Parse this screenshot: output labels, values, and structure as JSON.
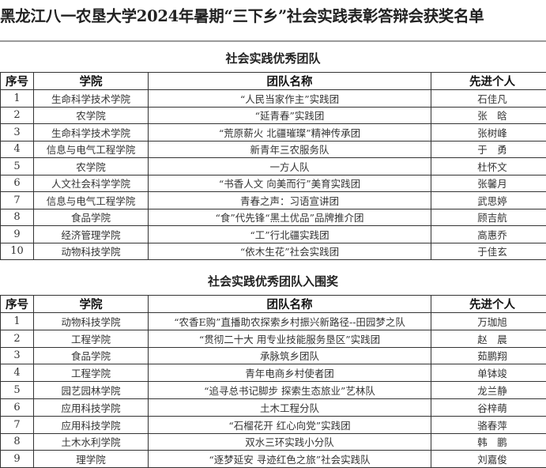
{
  "document_title": "黑龙江八一农垦大学2024年暑期“三下乡”社会实践表彰答辩会获奖名单",
  "headers": [
    "序号",
    "学院",
    "团队名称",
    "先进个人"
  ],
  "sections": [
    {
      "title": "社会实践优秀团队",
      "rows": [
        [
          "1",
          "生命科学技术学院",
          "“人民当家作主”实践团",
          "石佳凡"
        ],
        [
          "2",
          "农学院",
          "“延青春”实践团",
          "张　晗"
        ],
        [
          "3",
          "生命科学技术学院",
          "“荒原薪火 北疆璀璨”精神传承团",
          "张树峰"
        ],
        [
          "4",
          "信息与电气工程学院",
          "新青年三农服务队",
          "于　勇"
        ],
        [
          "5",
          "农学院",
          "一方人队",
          "杜怀文"
        ],
        [
          "6",
          "人文社会科学学院",
          "“书香人文 向美而行”美育实践团",
          "张馨月"
        ],
        [
          "7",
          "信息与电气工程学院",
          "青春之声：习语宣讲团",
          "武思婷"
        ],
        [
          "8",
          "食品学院",
          "“食”代先锋“黑土优品”品牌推介团",
          "顾吉航"
        ],
        [
          "9",
          "经济管理学院",
          "“工”行北疆实践团",
          "高惠乔"
        ],
        [
          "10",
          "动物科技学院",
          "“依木生花”社会实践团",
          "于佳玄"
        ]
      ]
    },
    {
      "title": "社会实践优秀团队入围奖",
      "rows": [
        [
          "1",
          "动物科技学院",
          "“农香E购”直播助农探索乡村振兴新路径--田园梦之队",
          "万珈旭"
        ],
        [
          "2",
          "工程学院",
          "“贯彻二十大 用专业技能服务垦区”实践团",
          "赵　晨"
        ],
        [
          "3",
          "食品学院",
          "承脉筑乡团队",
          "茹鹏翔"
        ],
        [
          "4",
          "工程学院",
          "青年电商乡村使者团",
          "单钵竣"
        ],
        [
          "5",
          "园艺园林学院",
          "“追寻总书记脚步 探索生态旅业”艺林队",
          "龙兰静"
        ],
        [
          "6",
          "应用科技学院",
          "土木工程分队",
          "谷梓萌"
        ],
        [
          "7",
          "应用科技学院",
          "“石榴花开 红心向党”实践团",
          "骆春萍"
        ],
        [
          "8",
          "土木水利学院",
          "双水三环实践小分队",
          "韩　鹏"
        ],
        [
          "9",
          "理学院",
          "“逐梦延安 寻迹红色之旅”社会实践队",
          "刘嘉俊"
        ]
      ]
    }
  ]
}
